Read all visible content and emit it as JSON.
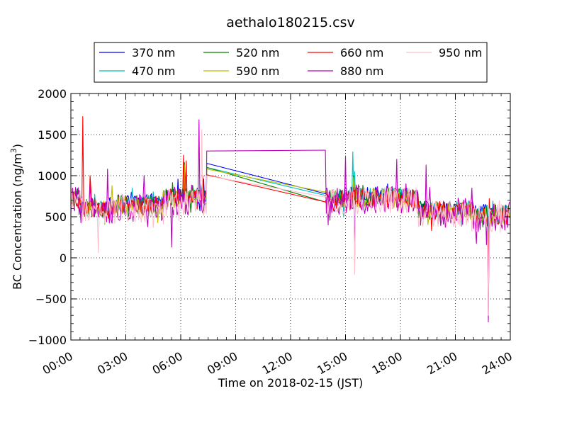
{
  "chart_data": {
    "type": "line",
    "title": "aethalo180215.csv",
    "xlabel": "Time on 2018-02-15 (JST)",
    "ylabel": {
      "prefix": "BC Concentration (ng/m",
      "sup": "3",
      "suffix": ")"
    },
    "xlim": [
      0,
      24
    ],
    "ylim": [
      -1000,
      2000
    ],
    "x_ticks": [
      0,
      3,
      6,
      9,
      12,
      15,
      18,
      21,
      24
    ],
    "x_tick_labels": [
      "00:00",
      "03:00",
      "06:00",
      "09:00",
      "12:00",
      "15:00",
      "18:00",
      "21:00",
      "24:00"
    ],
    "y_ticks": [
      -1000,
      -500,
      0,
      500,
      1000,
      1500,
      2000
    ],
    "y_tick_labels": [
      "−1000",
      "−500",
      "0",
      "500",
      "1000",
      "1500",
      "2000"
    ],
    "grid": true,
    "legend": {
      "placement": "top",
      "columns": 4
    },
    "series": [
      {
        "name": "370 nm",
        "color": "#0000ff",
        "level": 640,
        "noise": 90,
        "gapStart": 1150,
        "gapEnd": 780,
        "spikes": [
          [
            7.25,
            960
          ],
          [
            14.75,
            820
          ],
          [
            15.3,
            860
          ],
          [
            15.5,
            900
          ],
          [
            15.95,
            780
          ],
          [
            17.3,
            900
          ],
          [
            22.8,
            250
          ]
        ]
      },
      {
        "name": "470 nm",
        "color": "#00bfbf",
        "level": 620,
        "noise": 100,
        "gapStart": 1100,
        "gapEnd": 760,
        "spikes": [
          [
            7.1,
            900
          ],
          [
            15.4,
            1290
          ],
          [
            15.5,
            1050
          ],
          [
            22.8,
            300
          ]
        ]
      },
      {
        "name": "520 nm",
        "color": "#008000",
        "level": 610,
        "noise": 110,
        "gapStart": 1100,
        "gapEnd": 680,
        "spikes": [
          [
            6.2,
            1160
          ],
          [
            15.45,
            1000
          ],
          [
            22.8,
            200
          ]
        ]
      },
      {
        "name": "590 nm",
        "color": "#bfbf00",
        "level": 605,
        "noise": 115,
        "gapStart": 1080,
        "gapEnd": 800,
        "spikes": [
          [
            6.2,
            1130
          ],
          [
            15.45,
            980
          ],
          [
            22.8,
            150
          ]
        ]
      },
      {
        "name": "660 nm",
        "color": "#ff0000",
        "level": 600,
        "noise": 120,
        "gapStart": 1010,
        "gapEnd": 680,
        "spikes": [
          [
            0.65,
            1720
          ],
          [
            1.05,
            1000
          ],
          [
            6.15,
            1250
          ],
          [
            6.3,
            1180
          ],
          [
            7.2,
            1000
          ],
          [
            22.8,
            -200
          ]
        ]
      },
      {
        "name": "880 nm",
        "color": "#bf00bf",
        "level": 580,
        "noise": 180,
        "gapStart": 1300,
        "gapEnd": 570,
        "spikes": [
          [
            2.0,
            1080
          ],
          [
            4.0,
            1000
          ],
          [
            5.5,
            130
          ],
          [
            7.0,
            1680
          ],
          [
            13.9,
            1310
          ],
          [
            15.0,
            1240
          ],
          [
            15.5,
            -60
          ],
          [
            17.8,
            1200
          ],
          [
            19.4,
            1130
          ],
          [
            21.9,
            850
          ],
          [
            22.8,
            -780
          ]
        ]
      },
      {
        "name": "950 nm",
        "color": "#ffc0cb",
        "level": 560,
        "noise": 170,
        "gapStart": 1000,
        "gapEnd": 740,
        "spikes": [
          [
            1.5,
            60
          ],
          [
            7.15,
            1560
          ],
          [
            15.5,
            -200
          ],
          [
            22.8,
            -700
          ]
        ]
      }
    ],
    "gap": {
      "start_hour": 7.4,
      "end_hour": 13.9
    }
  }
}
